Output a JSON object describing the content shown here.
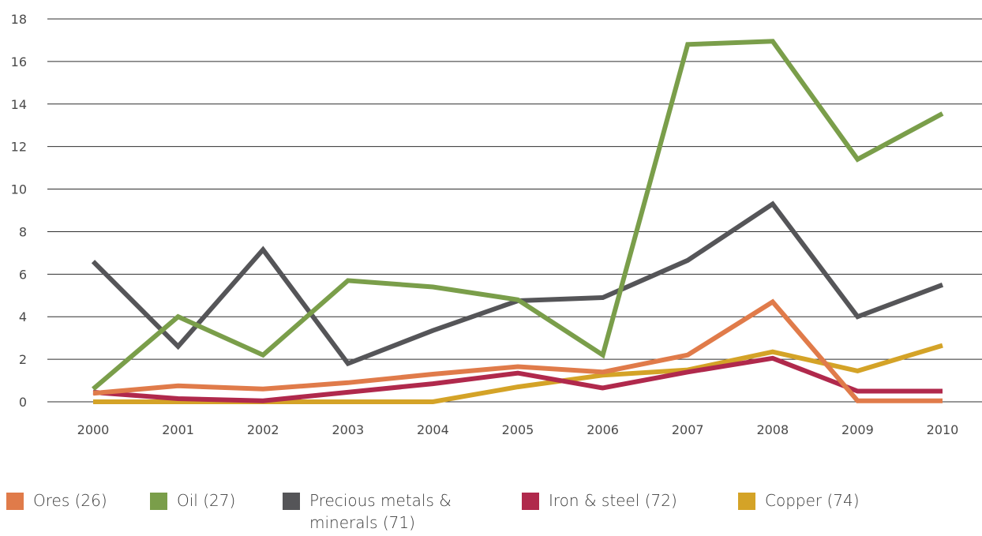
{
  "chart_data": {
    "type": "line",
    "title": "",
    "xlabel": "",
    "ylabel": "",
    "ylim": [
      0,
      18
    ],
    "yticks": [
      0,
      2,
      4,
      6,
      8,
      10,
      12,
      14,
      16,
      18
    ],
    "grid": "horizontal",
    "legend_position": "bottom",
    "categories": [
      "2000",
      "2001",
      "2002",
      "2003",
      "2004",
      "2005",
      "2006",
      "2007",
      "2008",
      "2009",
      "2010"
    ],
    "series": [
      {
        "name": "Ores (26)",
        "color": "#e07b4a",
        "values": [
          0.4,
          0.75,
          0.6,
          0.9,
          1.3,
          1.65,
          1.4,
          2.2,
          4.7,
          0.05,
          0.05
        ]
      },
      {
        "name": "Oil (27)",
        "color": "#7a9e4a",
        "values": [
          0.6,
          4.0,
          2.2,
          5.7,
          5.4,
          4.8,
          2.2,
          16.8,
          16.95,
          11.4,
          13.55
        ]
      },
      {
        "name": "Precious metals & minerals (71)",
        "color": "#555558",
        "label_lines": [
          "Precious metals &",
          "minerals (71)"
        ],
        "values": [
          6.6,
          2.6,
          7.15,
          1.8,
          3.35,
          4.75,
          4.9,
          6.65,
          9.3,
          4.0,
          5.5
        ]
      },
      {
        "name": "Iron & steel (72)",
        "color": "#b0294c",
        "values": [
          0.45,
          0.15,
          0.05,
          0.45,
          0.85,
          1.35,
          0.65,
          1.4,
          2.05,
          0.5,
          0.5
        ]
      },
      {
        "name": "Copper (74)",
        "color": "#d4a327",
        "values": [
          0.0,
          0.0,
          0.0,
          0.0,
          0.0,
          0.7,
          1.25,
          1.5,
          2.35,
          1.45,
          2.65
        ]
      }
    ]
  }
}
